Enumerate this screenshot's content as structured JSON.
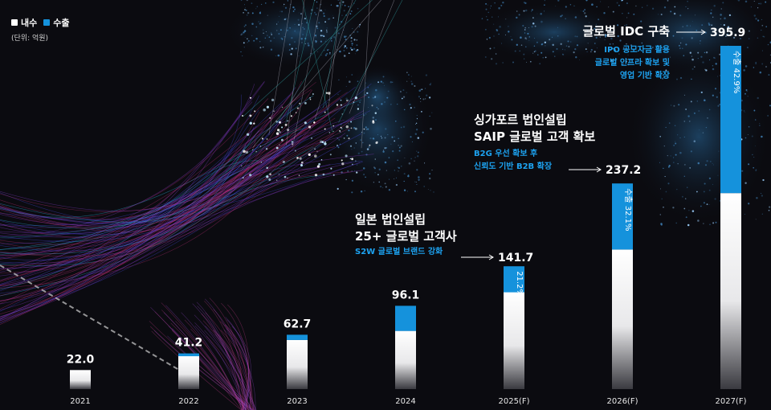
{
  "legend": {
    "items": [
      {
        "label": "내수",
        "color": "#ffffff"
      },
      {
        "label": "수출",
        "color": "#1592dc"
      }
    ]
  },
  "unit": "(단위: 억원)",
  "colors": {
    "domestic": "#ffffff",
    "export": "#1592dc",
    "accent_text": "#1da2f0"
  },
  "chart_data": {
    "type": "bar",
    "stacked": true,
    "categories": [
      "2021",
      "2022",
      "2023",
      "2024",
      "2025(F)",
      "2026(F)",
      "2027(F)"
    ],
    "totals": [
      22.0,
      41.2,
      62.7,
      96.1,
      141.7,
      237.2,
      395.9
    ],
    "total_labels": [
      "22.0",
      "41.2",
      "62.7",
      "96.1",
      "141.7",
      "237.2",
      "395.9"
    ],
    "series": [
      {
        "name": "내수",
        "values": [
          22.0,
          38.0,
          56.7,
          67.1,
          111.7,
          161.0,
          226.0
        ]
      },
      {
        "name": "수출",
        "values": [
          0.0,
          3.2,
          6.0,
          29.0,
          30.0,
          76.2,
          169.9
        ]
      }
    ],
    "export_share_labels": [
      "",
      "",
      "",
      "",
      "21.2%",
      "수출 32.1%",
      "수출 42.9%"
    ],
    "ylim": [
      0,
      400
    ]
  },
  "annotations": [
    {
      "title_lines": [
        "일본 법인설립",
        "25+ 글로벌 고객사"
      ],
      "sub_lines": [
        "S2W 글로벌 브랜드 강화"
      ],
      "target": "141.7"
    },
    {
      "title_lines": [
        "싱가포르 법인설립",
        "SAIP 글로벌 고객 확보"
      ],
      "sub_lines": [
        "B2G 우선 확보 후",
        "신뢰도 기반 B2B 확장"
      ],
      "target": "237.2"
    },
    {
      "title_lines": [
        "글로벌 IDC 구축"
      ],
      "sub_lines": [
        "IPO 공모자금 활용",
        "글로벌 인프라 확보 및",
        "영업 기반 확장"
      ],
      "target": "395.9"
    }
  ]
}
